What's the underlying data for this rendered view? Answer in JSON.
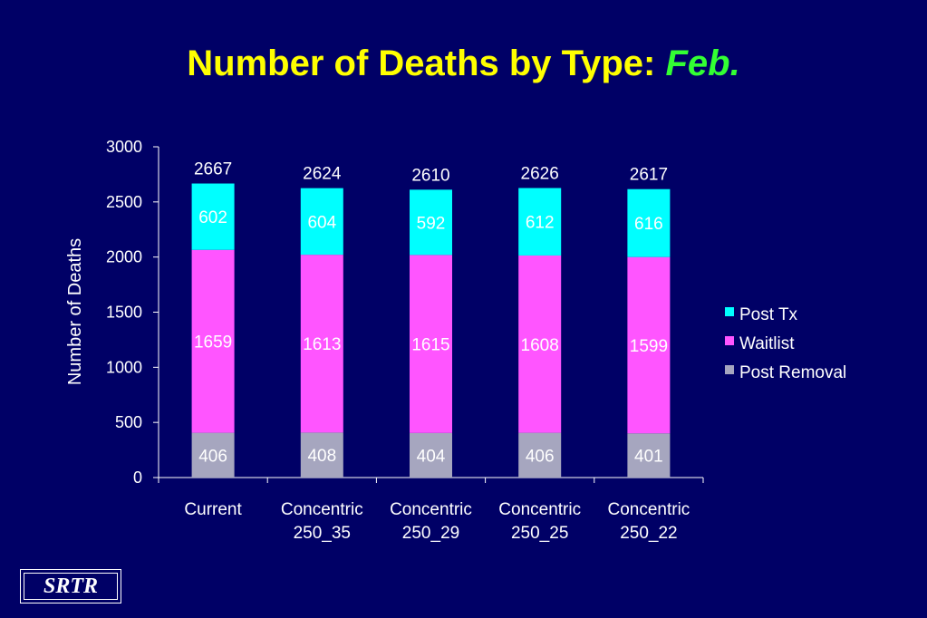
{
  "title": {
    "main": "Number of Deaths by Type: ",
    "emphasis": "Feb."
  },
  "logo": "SRTR",
  "colors": {
    "background": "#000066",
    "title": "#FFFF00",
    "emphasis": "#33FF33",
    "text": "#FFFFFF"
  },
  "chart_data": {
    "type": "bar",
    "stacked": true,
    "title": "Number of Deaths by Type: Feb.",
    "xlabel": "",
    "ylabel": "Number of Deaths",
    "ylim": [
      0,
      3000
    ],
    "yticks": [
      0,
      500,
      1000,
      1500,
      2000,
      2500,
      3000
    ],
    "grid": false,
    "legend_position": "right",
    "categories": [
      [
        "Current"
      ],
      [
        "Concentric",
        "250_35"
      ],
      [
        "Concentric",
        "250_29"
      ],
      [
        "Concentric",
        "250_25"
      ],
      [
        "Concentric",
        "250_22"
      ]
    ],
    "series": [
      {
        "name": "Post Removal",
        "color": "#A6A6BF",
        "values": [
          406,
          408,
          404,
          406,
          401
        ]
      },
      {
        "name": "Waitlist",
        "color": "#FF55FF",
        "values": [
          1659,
          1613,
          1615,
          1608,
          1599
        ]
      },
      {
        "name": "Post Tx",
        "color": "#00FFFF",
        "values": [
          602,
          604,
          592,
          612,
          616
        ]
      }
    ],
    "totals": [
      2667,
      2624,
      2610,
      2626,
      2617
    ],
    "legend_order": [
      "Post Tx",
      "Waitlist",
      "Post Removal"
    ]
  }
}
